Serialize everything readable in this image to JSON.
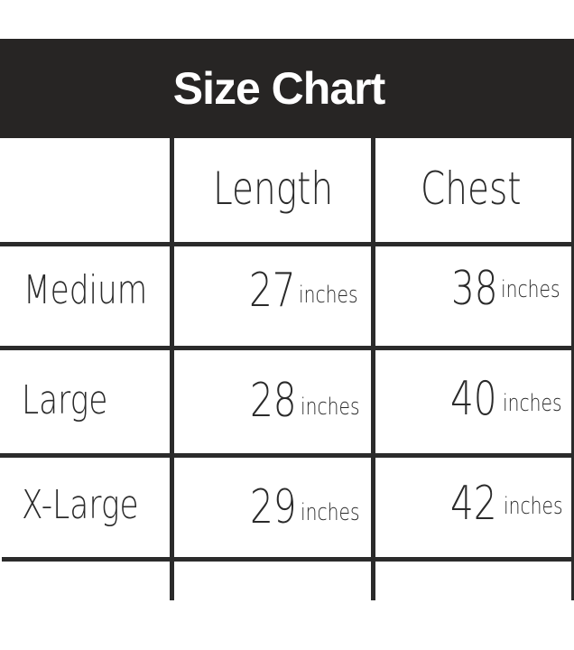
{
  "title": "Size Chart",
  "columns": [
    "",
    "Length",
    "Chest"
  ],
  "rows": [
    {
      "size": "Medium",
      "length": "27",
      "chest": "38",
      "unit": "inches"
    },
    {
      "size": "Large",
      "length": "28",
      "chest": "40",
      "unit": "inches"
    },
    {
      "size": "X-Large",
      "length": "29",
      "chest": "42",
      "unit": "inches"
    }
  ],
  "colors": {
    "header_bg": "#272524",
    "header_text": "#ffffff",
    "lines": "#2b2b2b"
  }
}
